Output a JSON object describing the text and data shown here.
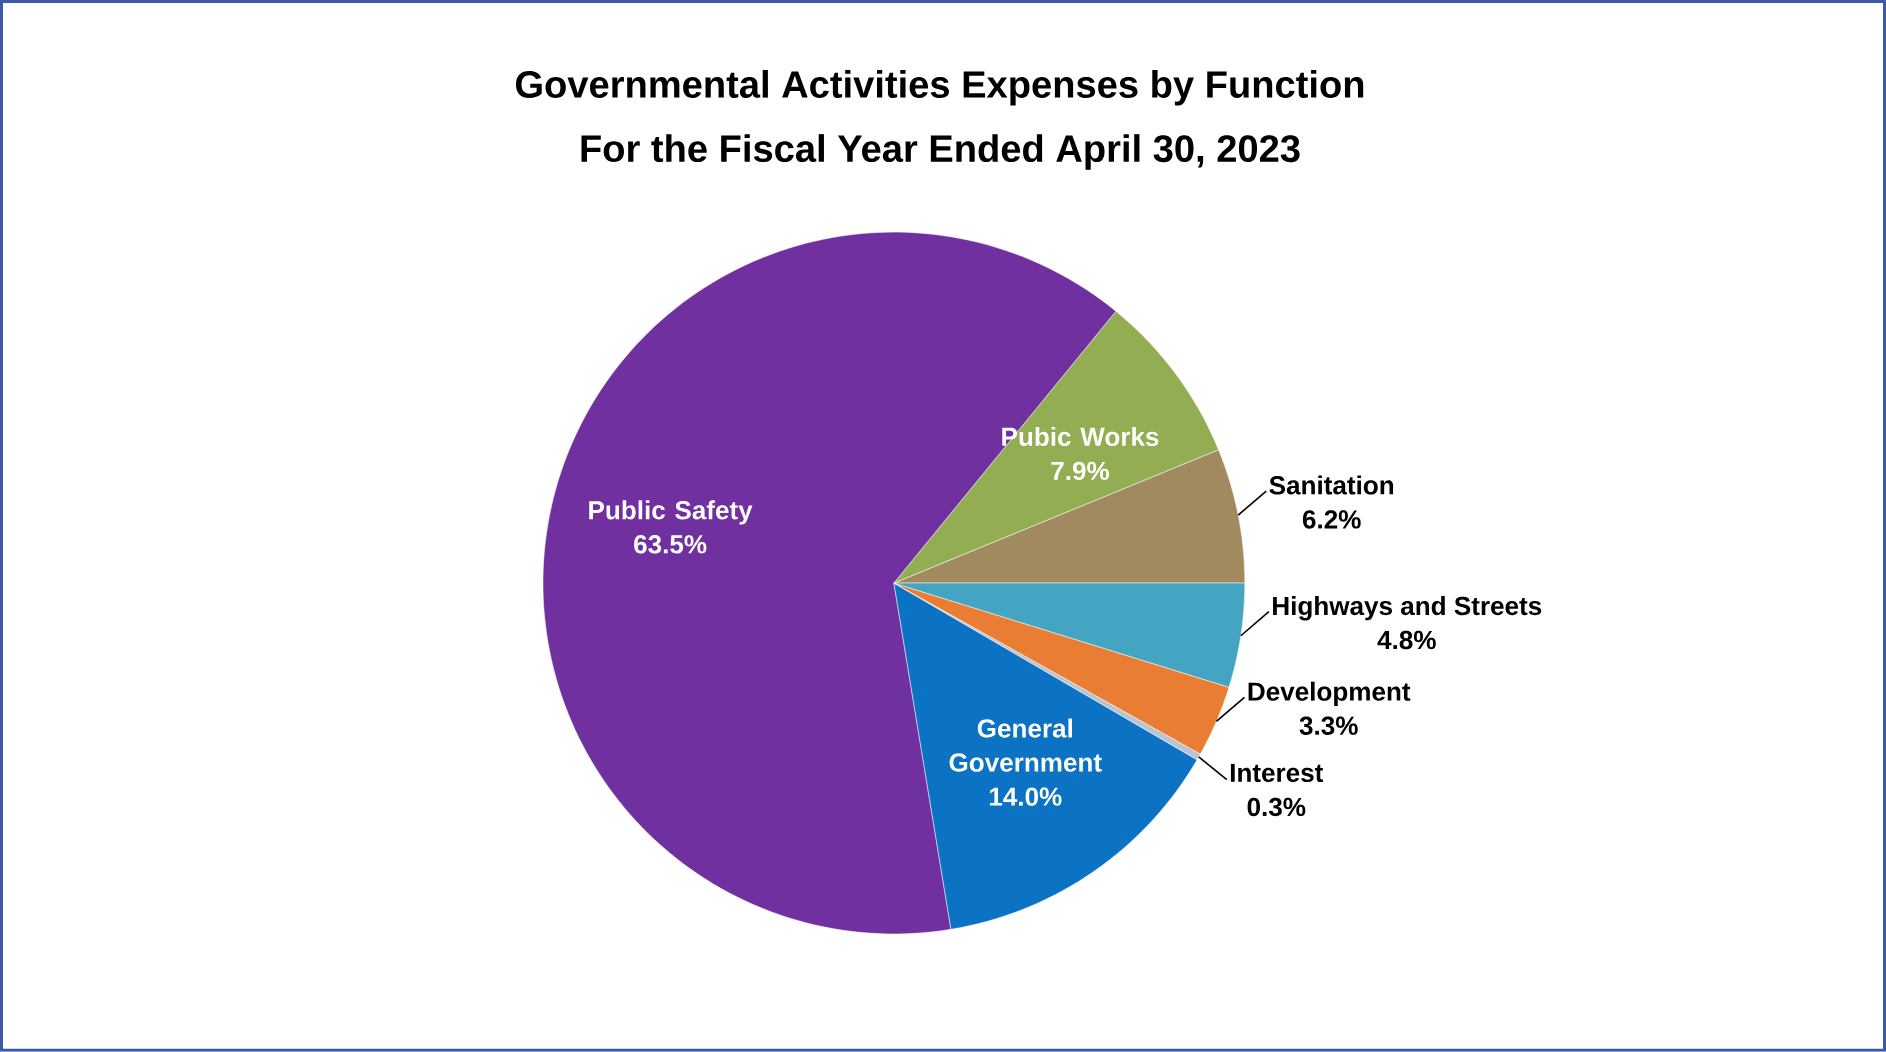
{
  "chart_data": {
    "type": "pie",
    "title": "Governmental Activities Expenses by Function",
    "subtitle": "For the Fiscal Year Ended April 30, 2023",
    "categories": [
      "Sanitation",
      "Pubic Works",
      "Public Safety",
      "General Government",
      "Interest",
      "Development",
      "Highways and Streets"
    ],
    "values": [
      6.2,
      7.9,
      63.5,
      14.0,
      0.3,
      3.3,
      4.8
    ],
    "value_labels": [
      "6.2%",
      "7.9%",
      "63.5%",
      "14.0%",
      "0.3%",
      "3.3%",
      "4.8%"
    ],
    "colors": [
      "#a08a5e",
      "#92ad52",
      "#7030a0",
      "#0b72c4",
      "#b8c4d0",
      "#e97d34",
      "#44a5c2"
    ]
  }
}
